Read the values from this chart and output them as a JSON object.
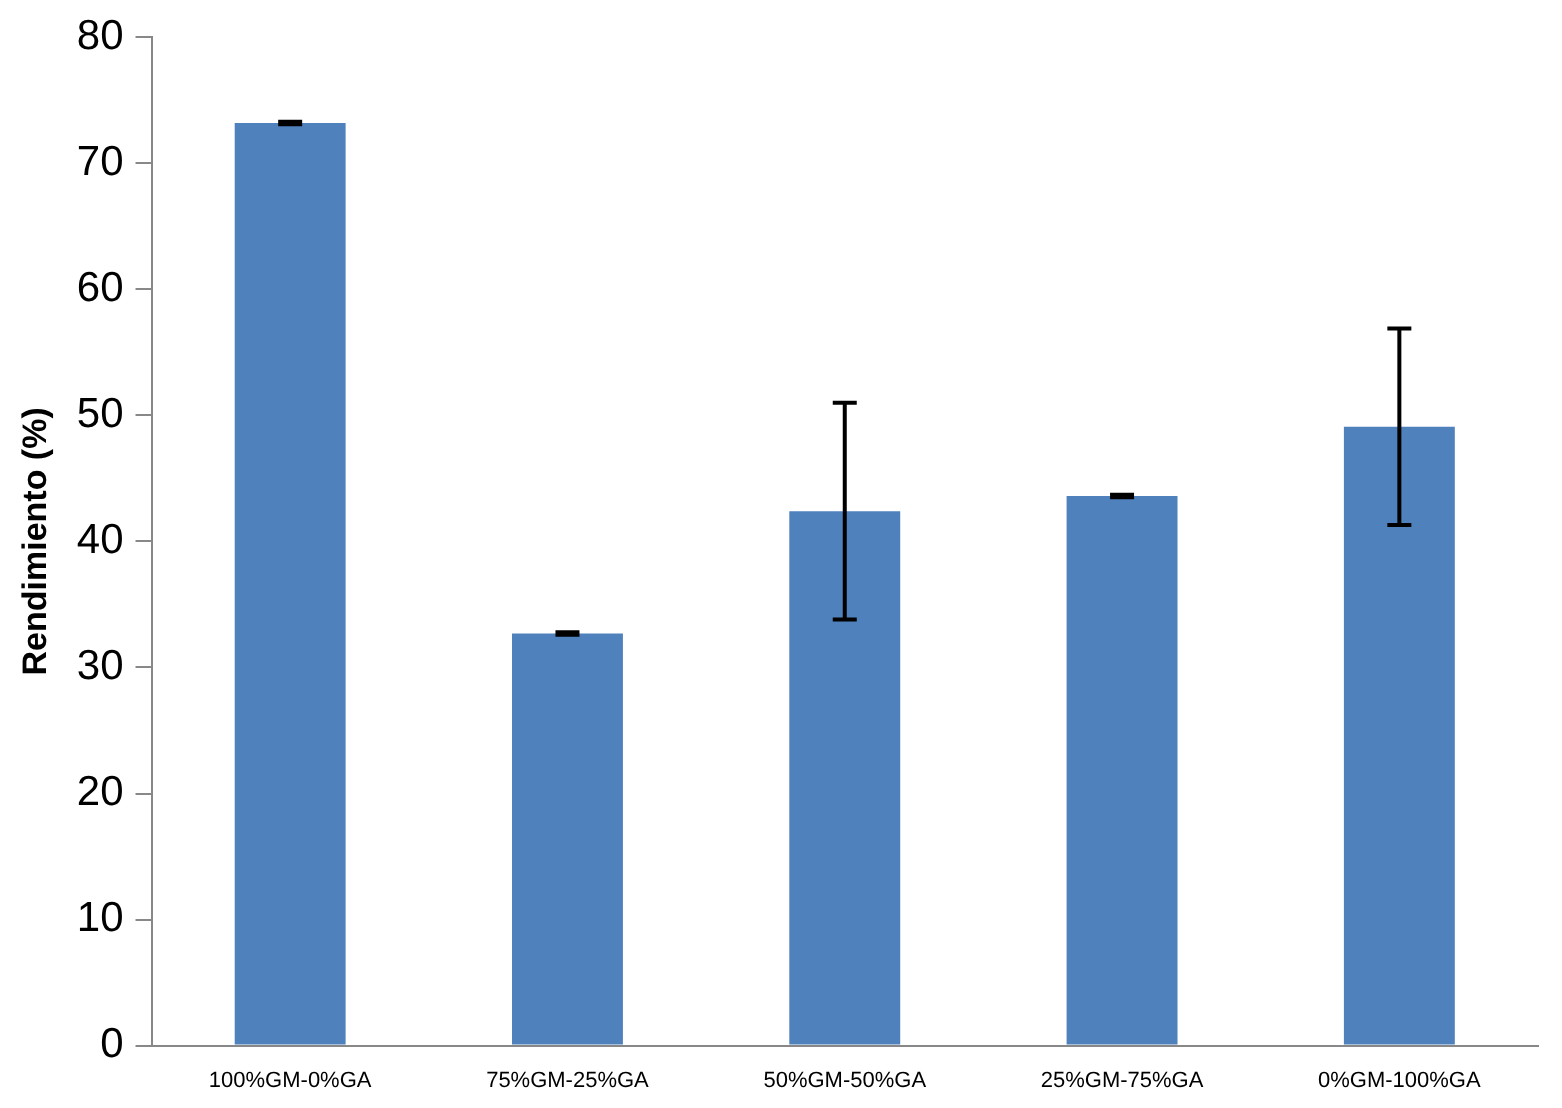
{
  "chart_data": {
    "type": "bar",
    "ylabel": "Rendimiento (%)",
    "categories": [
      "100%GM-0%GA",
      "75%GM-25%GA",
      "50%GM-50%GA",
      "25%GM-75%GA",
      "0%GM-100%GA"
    ],
    "values": [
      73.2,
      32.7,
      42.4,
      43.6,
      49.1
    ],
    "errors": [
      0.1,
      0.1,
      8.6,
      0.1,
      7.8
    ],
    "color": "#4f81bd",
    "ylim": [
      0,
      80
    ],
    "yticks": [
      0,
      10,
      20,
      30,
      40,
      50,
      60,
      70,
      80
    ],
    "grid": false,
    "legend": false
  }
}
